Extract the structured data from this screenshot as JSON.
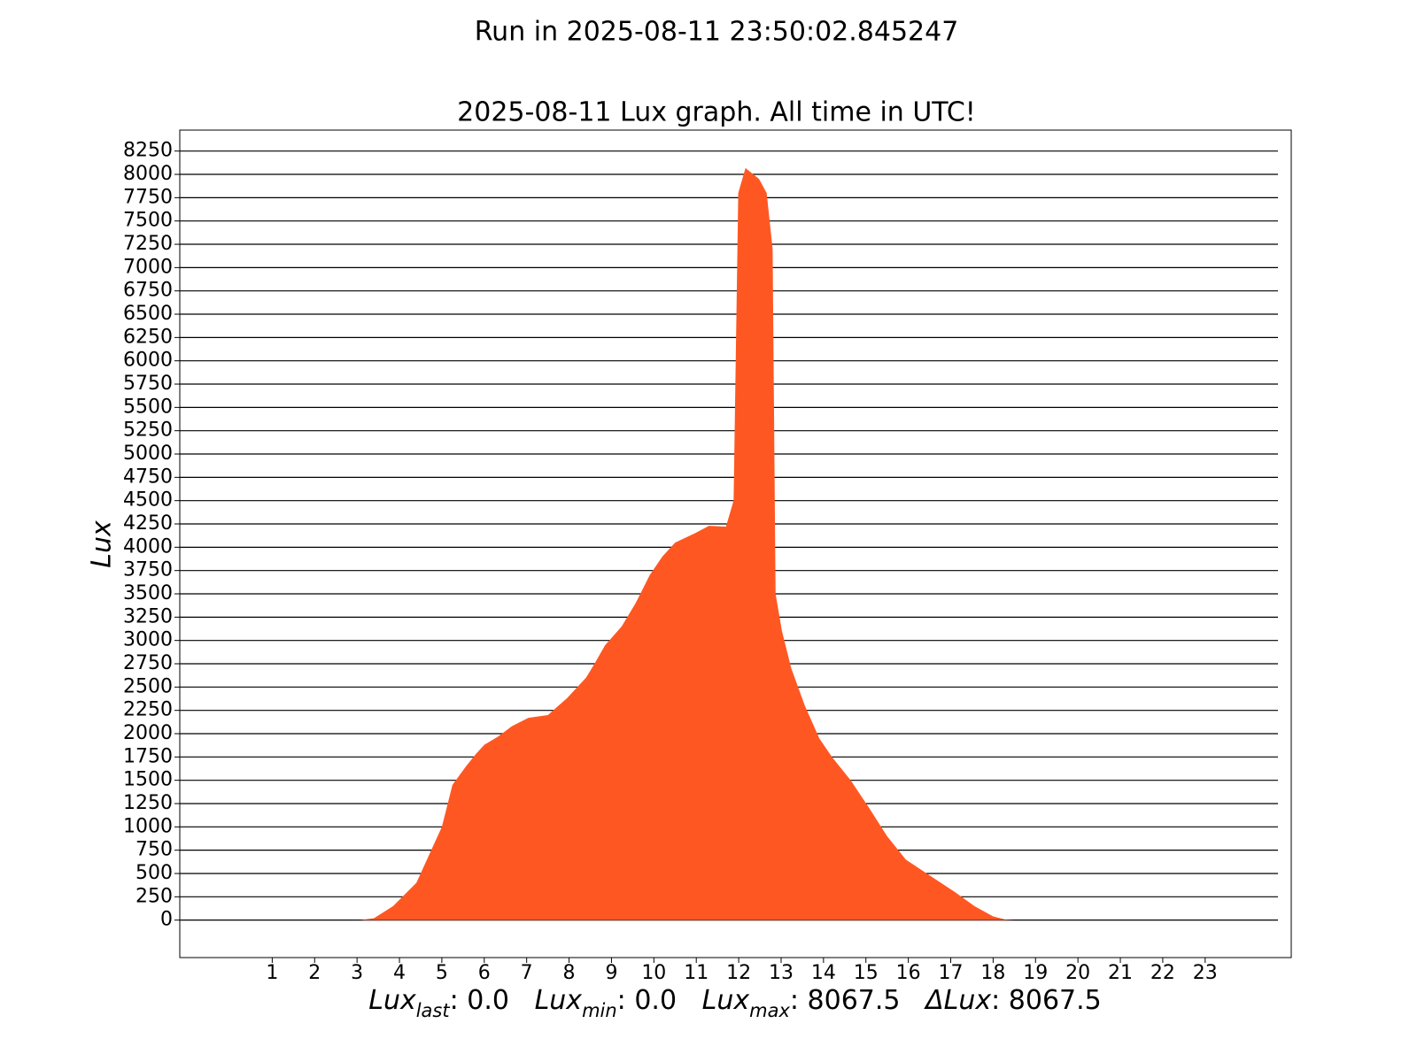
{
  "chart_data": {
    "type": "area",
    "suptitle": "Run in 2025-08-11 23:50:02.845247",
    "title": "2025-08-11 Lux graph. All time in UTC!",
    "ylabel": "Lux",
    "xlabel_parts": [
      {
        "text": "Lux",
        "style": "italic"
      },
      {
        "text": "last",
        "style": "sub"
      },
      {
        "text": ": 0.0   ",
        "style": "normal"
      },
      {
        "text": "Lux",
        "style": "italic"
      },
      {
        "text": "min",
        "style": "sub"
      },
      {
        "text": ": 0.0   ",
        "style": "normal"
      },
      {
        "text": "Lux",
        "style": "italic"
      },
      {
        "text": "max",
        "style": "sub"
      },
      {
        "text": ": 8067.5   ",
        "style": "normal"
      },
      {
        "text": "ΔLux",
        "style": "italic"
      },
      {
        "text": ": 8067.5",
        "style": "normal"
      }
    ],
    "color": "#ff5722",
    "grid": true,
    "x": [
      0,
      3.0,
      3.1,
      3.4,
      3.85,
      4.4,
      4.7,
      5.0,
      5.25,
      5.57,
      5.8,
      6.0,
      6.33,
      6.65,
      7.04,
      7.5,
      7.95,
      8.4,
      8.6,
      8.85,
      9.24,
      9.57,
      9.9,
      10.2,
      10.5,
      10.97,
      11.3,
      11.7,
      11.88,
      11.99,
      12.16,
      12.48,
      12.66,
      12.8,
      12.87,
      13.02,
      13.24,
      13.56,
      13.9,
      14.2,
      14.64,
      15.08,
      15.5,
      15.94,
      16.6,
      17.1,
      17.56,
      18.0,
      18.3,
      18.5,
      24
    ],
    "values": [
      0,
      0,
      2,
      20,
      150,
      400,
      700,
      1000,
      1450,
      1650,
      1780,
      1880,
      1970,
      2080,
      2170,
      2200,
      2380,
      2600,
      2750,
      2950,
      3150,
      3400,
      3700,
      3900,
      4050,
      4150,
      4230,
      4220,
      4500,
      7800,
      8067.5,
      7950,
      7800,
      7200,
      3500,
      3100,
      2700,
      2300,
      1950,
      1750,
      1500,
      1200,
      900,
      650,
      450,
      300,
      150,
      40,
      5,
      0,
      0
    ],
    "xlim": [
      -1.18,
      25.03
    ],
    "ylim": [
      -402,
      8475
    ],
    "xticks": [
      1,
      2,
      3,
      4,
      5,
      6,
      7,
      8,
      9,
      10,
      11,
      12,
      13,
      14,
      15,
      16,
      17,
      18,
      19,
      20,
      21,
      22,
      23
    ],
    "yticks": [
      0,
      250,
      500,
      750,
      1000,
      1250,
      1500,
      1750,
      2000,
      2250,
      2500,
      2750,
      3000,
      3250,
      3500,
      3750,
      4000,
      4250,
      4500,
      4750,
      5000,
      5250,
      5500,
      5750,
      6000,
      6250,
      6500,
      6750,
      7000,
      7250,
      7500,
      7750,
      8000,
      8250
    ]
  }
}
